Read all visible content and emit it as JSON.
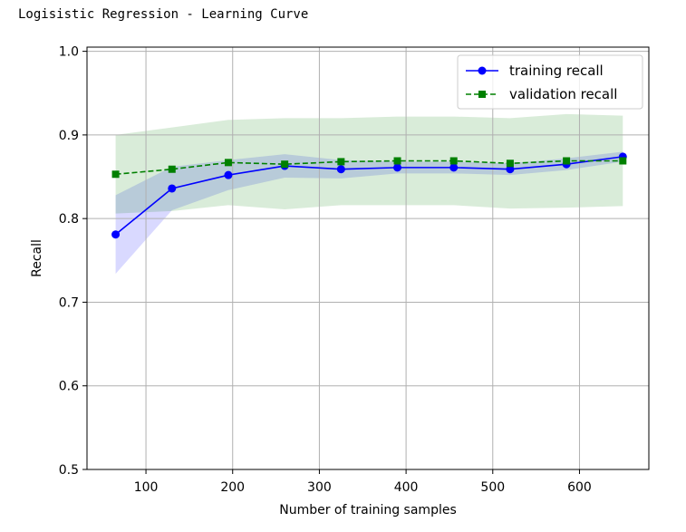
{
  "header": {
    "title": "Logisistic Regression - Learning Curve"
  },
  "chart_data": {
    "type": "line",
    "title": "",
    "xlabel": "Number of training samples",
    "ylabel": "Recall",
    "xlim": [
      32,
      680
    ],
    "ylim": [
      0.5,
      1.005
    ],
    "xticks": [
      100,
      200,
      300,
      400,
      500,
      600
    ],
    "yticks": [
      0.5,
      0.6,
      0.7,
      0.8,
      0.9,
      1.0
    ],
    "grid": true,
    "legend_position": "top-right",
    "x": [
      65,
      130,
      195,
      260,
      325,
      390,
      455,
      520,
      585,
      650
    ],
    "series": [
      {
        "name": "training recall",
        "color": "#0000ff",
        "line_style": "solid",
        "marker": "circle",
        "values": [
          0.781,
          0.836,
          0.852,
          0.863,
          0.859,
          0.861,
          0.861,
          0.859,
          0.865,
          0.874
        ],
        "band_upper": [
          0.828,
          0.862,
          0.87,
          0.877,
          0.87,
          0.868,
          0.868,
          0.866,
          0.872,
          0.88
        ],
        "band_lower": [
          0.734,
          0.81,
          0.834,
          0.849,
          0.848,
          0.854,
          0.854,
          0.852,
          0.858,
          0.868
        ],
        "band_color": "#0000ff"
      },
      {
        "name": "validation recall",
        "color": "#008000",
        "line_style": "dashed",
        "marker": "square",
        "values": [
          0.853,
          0.859,
          0.867,
          0.865,
          0.868,
          0.869,
          0.869,
          0.866,
          0.869,
          0.869
        ],
        "band_upper": [
          0.9,
          0.909,
          0.918,
          0.92,
          0.92,
          0.922,
          0.922,
          0.92,
          0.925,
          0.923
        ],
        "band_lower": [
          0.806,
          0.809,
          0.816,
          0.811,
          0.816,
          0.816,
          0.816,
          0.812,
          0.813,
          0.815
        ],
        "band_color": "#008000"
      }
    ]
  }
}
